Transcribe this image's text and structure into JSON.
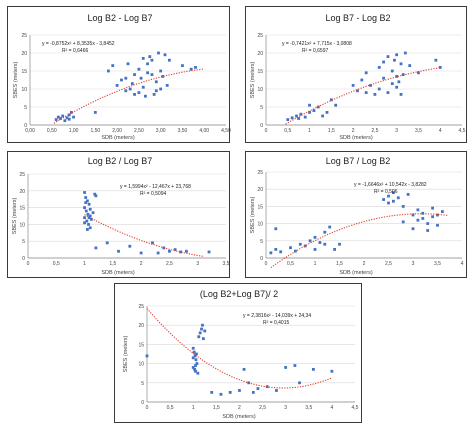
{
  "chart_data": [
    {
      "type": "scatter",
      "title": "Log B2 - Log B7",
      "xlabel": "SDB (meters)",
      "ylabel": "SBES (meters)",
      "xlim": [
        0,
        4.5
      ],
      "ylim": [
        0,
        25
      ],
      "xticks": [
        "0,00",
        "0,50",
        "1,00",
        "1,50",
        "2,00",
        "2,50",
        "3,00",
        "3,50",
        "4,00",
        "4,50"
      ],
      "yticks": [
        "0",
        "5",
        "10",
        "15",
        "20",
        "25"
      ],
      "equation": "y = -0,8752x² + 8,3535x - 3,8452",
      "r2": "R² = 0,6466",
      "trend": {
        "a": -0.8752,
        "b": 8.3535,
        "c": -3.8452,
        "x0": 0.55,
        "x1": 4.0
      },
      "points": [
        [
          0.6,
          1.5
        ],
        [
          0.65,
          2.2
        ],
        [
          0.7,
          1.8
        ],
        [
          0.75,
          2.5
        ],
        [
          0.8,
          1.2
        ],
        [
          0.85,
          2.0
        ],
        [
          0.9,
          2.8
        ],
        [
          0.95,
          3.5
        ],
        [
          1.0,
          2.2
        ],
        [
          0.9,
          1.6
        ],
        [
          1.5,
          3.5
        ],
        [
          1.8,
          15.0
        ],
        [
          1.9,
          16.5
        ],
        [
          2.0,
          11.0
        ],
        [
          2.1,
          12.5
        ],
        [
          2.2,
          13.0
        ],
        [
          2.25,
          17.0
        ],
        [
          2.3,
          10.0
        ],
        [
          2.35,
          11.5
        ],
        [
          2.4,
          8.5
        ],
        [
          2.5,
          9.0
        ],
        [
          2.55,
          13.0
        ],
        [
          2.6,
          10.5
        ],
        [
          2.65,
          8.0
        ],
        [
          2.7,
          14.5
        ],
        [
          2.75,
          19.0
        ],
        [
          2.8,
          18.0
        ],
        [
          2.85,
          8.5
        ],
        [
          2.9,
          12.0
        ],
        [
          2.95,
          20.0
        ],
        [
          3.0,
          15.0
        ],
        [
          3.05,
          13.5
        ],
        [
          3.1,
          19.5
        ],
        [
          3.15,
          11.0
        ],
        [
          2.9,
          9.5
        ],
        [
          2.6,
          18.5
        ],
        [
          2.7,
          17.0
        ],
        [
          3.0,
          10.0
        ],
        [
          2.8,
          14.0
        ],
        [
          3.5,
          16.5
        ],
        [
          3.7,
          15.5
        ],
        [
          3.8,
          16.0
        ],
        [
          2.5,
          15.5
        ],
        [
          2.4,
          14.0
        ],
        [
          2.2,
          9.5
        ],
        [
          3.2,
          18.0
        ]
      ]
    },
    {
      "type": "scatter",
      "title": "Log B7 - Log B2",
      "xlabel": "SDB (meters)",
      "ylabel": "SBES (meters)",
      "xlim": [
        0,
        4.5
      ],
      "ylim": [
        0,
        25
      ],
      "xticks": [
        "0",
        "0,5",
        "1",
        "1,5",
        "2",
        "2,5",
        "3",
        "3,5",
        "4",
        "4,5"
      ],
      "yticks": [
        "0",
        "5",
        "10",
        "15",
        "20",
        "25"
      ],
      "equation": "y = -0,7421x² + 7,715x - 3,0808",
      "r2": "R² = 0,6597",
      "trend": {
        "a": -0.7421,
        "b": 7.715,
        "c": -3.0808,
        "x0": 0.45,
        "x1": 4.0
      },
      "points": [
        [
          0.5,
          1.5
        ],
        [
          0.6,
          2.0
        ],
        [
          0.7,
          2.5
        ],
        [
          0.75,
          1.8
        ],
        [
          0.8,
          3.0
        ],
        [
          0.9,
          2.2
        ],
        [
          1.0,
          3.5
        ],
        [
          1.0,
          5.5
        ],
        [
          1.1,
          4.0
        ],
        [
          1.2,
          5.0
        ],
        [
          1.3,
          2.5
        ],
        [
          1.4,
          3.5
        ],
        [
          1.5,
          7.0
        ],
        [
          1.6,
          5.5
        ],
        [
          2.0,
          11.0
        ],
        [
          2.1,
          9.5
        ],
        [
          2.2,
          12.5
        ],
        [
          2.3,
          14.5
        ],
        [
          2.4,
          11.0
        ],
        [
          2.5,
          8.5
        ],
        [
          2.6,
          10.0
        ],
        [
          2.7,
          13.0
        ],
        [
          2.8,
          9.0
        ],
        [
          2.9,
          15.0
        ],
        [
          2.95,
          18.0
        ],
        [
          3.0,
          19.5
        ],
        [
          3.05,
          12.0
        ],
        [
          3.1,
          17.0
        ],
        [
          3.15,
          14.0
        ],
        [
          3.2,
          20.0
        ],
        [
          3.0,
          10.5
        ],
        [
          2.9,
          11.5
        ],
        [
          2.8,
          19.0
        ],
        [
          3.1,
          8.5
        ],
        [
          2.6,
          16.0
        ],
        [
          3.3,
          16.5
        ],
        [
          3.5,
          14.5
        ],
        [
          4.0,
          16.0
        ],
        [
          3.9,
          18.0
        ],
        [
          2.3,
          9.0
        ],
        [
          2.7,
          17.5
        ],
        [
          3.0,
          13.5
        ]
      ]
    },
    {
      "type": "scatter",
      "title": "Log B2 / Log B7",
      "xlabel": "SDB (meters)",
      "ylabel": "SBES (meters)",
      "xlim": [
        0,
        3.5
      ],
      "ylim": [
        0,
        25
      ],
      "xticks": [
        "0",
        "0,5",
        "1",
        "1,5",
        "2",
        "2,5",
        "3",
        "3,5"
      ],
      "yticks": [
        "0",
        "5",
        "10",
        "15",
        "20",
        "25"
      ],
      "equation": "y = 1,5994x² - 12,467x + 23,768",
      "r2": "R² = 0,5094",
      "trend": {
        "a": 1.5994,
        "b": -12.467,
        "c": 23.768,
        "x0": 1.0,
        "x1": 3.1
      },
      "points": [
        [
          1.0,
          19.5
        ],
        [
          1.02,
          18.0
        ],
        [
          1.05,
          17.0
        ],
        [
          1.08,
          16.0
        ],
        [
          1.0,
          15.0
        ],
        [
          1.03,
          14.0
        ],
        [
          1.06,
          13.0
        ],
        [
          1.1,
          12.5
        ],
        [
          1.0,
          12.0
        ],
        [
          1.04,
          11.0
        ],
        [
          1.07,
          10.0
        ],
        [
          1.1,
          9.0
        ],
        [
          1.12,
          11.5
        ],
        [
          1.15,
          13.5
        ],
        [
          1.18,
          19.0
        ],
        [
          1.2,
          18.5
        ],
        [
          1.05,
          8.5
        ],
        [
          1.0,
          10.5
        ],
        [
          1.1,
          14.5
        ],
        [
          1.2,
          3.0
        ],
        [
          1.4,
          4.5
        ],
        [
          1.6,
          2.0
        ],
        [
          1.8,
          3.5
        ],
        [
          2.0,
          1.5
        ],
        [
          2.2,
          4.5
        ],
        [
          2.4,
          3.0
        ],
        [
          2.5,
          2.0
        ],
        [
          2.6,
          2.5
        ],
        [
          2.7,
          1.8
        ],
        [
          2.8,
          2.0
        ],
        [
          3.2,
          1.8
        ],
        [
          2.3,
          1.5
        ],
        [
          1.02,
          16.5
        ],
        [
          1.08,
          12.0
        ]
      ]
    },
    {
      "type": "scatter",
      "title": "Log B7 / Log B2",
      "xlabel": "SDB (meters)",
      "ylabel": "SBES (meters)",
      "xlim": [
        0,
        4
      ],
      "ylim": [
        0,
        25
      ],
      "xticks": [
        "0",
        "0,5",
        "1",
        "1,5",
        "2",
        "2,5",
        "3",
        "3,5",
        "4"
      ],
      "yticks": [
        "0",
        "5",
        "10",
        "15",
        "20",
        "25"
      ],
      "equation": "y = -1,6646x² + 10,542x - 3,8282",
      "r2": "R² = 0,506",
      "trend": {
        "a": -1.6646,
        "b": 10.542,
        "c": -3.8282,
        "x0": 0.1,
        "x1": 3.7
      },
      "points": [
        [
          0.1,
          1.5
        ],
        [
          0.2,
          2.5
        ],
        [
          0.3,
          1.8
        ],
        [
          0.5,
          3.0
        ],
        [
          0.6,
          2.0
        ],
        [
          0.7,
          4.0
        ],
        [
          0.8,
          3.5
        ],
        [
          0.9,
          5.0
        ],
        [
          1.0,
          2.5
        ],
        [
          1.0,
          6.0
        ],
        [
          1.1,
          4.5
        ],
        [
          1.2,
          7.5
        ],
        [
          1.3,
          9.0
        ],
        [
          1.4,
          2.5
        ],
        [
          1.5,
          4.0
        ],
        [
          2.4,
          17.0
        ],
        [
          2.5,
          18.0
        ],
        [
          2.6,
          16.5
        ],
        [
          2.7,
          17.5
        ],
        [
          2.8,
          15.0
        ],
        [
          2.9,
          18.5
        ],
        [
          2.5,
          16.0
        ],
        [
          2.6,
          19.0
        ],
        [
          3.0,
          12.5
        ],
        [
          3.1,
          11.0
        ],
        [
          3.2,
          13.0
        ],
        [
          3.3,
          10.0
        ],
        [
          3.4,
          12.0
        ],
        [
          3.5,
          9.5
        ],
        [
          3.6,
          13.5
        ],
        [
          3.0,
          8.5
        ],
        [
          3.1,
          14.0
        ],
        [
          3.3,
          8.0
        ],
        [
          2.8,
          10.5
        ],
        [
          3.2,
          11.5
        ],
        [
          3.4,
          14.5
        ],
        [
          3.5,
          12.5
        ],
        [
          0.2,
          8.5
        ],
        [
          1.2,
          4.0
        ]
      ]
    },
    {
      "type": "scatter",
      "title": "(Log B2+Log B7)/ 2",
      "xlabel": "SDB (meters)",
      "ylabel": "SBES (meters)",
      "xlim": [
        0,
        4.5
      ],
      "ylim": [
        0,
        25
      ],
      "xticks": [
        "0",
        "0,5",
        "1",
        "1,5",
        "2",
        "2,5",
        "3",
        "3,5",
        "4",
        "4,5"
      ],
      "yticks": [
        "0",
        "5",
        "10",
        "15",
        "20",
        "25"
      ],
      "equation": "y = 2,3816x² - 14,039x + 24,34",
      "r2": "R² = 0,4015",
      "trend": {
        "a": 2.3816,
        "b": -14.039,
        "c": 24.34,
        "x0": 0.0,
        "x1": 4.0
      },
      "points": [
        [
          0.0,
          12.0
        ],
        [
          1.0,
          14.0
        ],
        [
          1.02,
          13.0
        ],
        [
          1.04,
          12.0
        ],
        [
          1.06,
          11.0
        ],
        [
          1.08,
          10.0
        ],
        [
          1.0,
          9.0
        ],
        [
          1.03,
          8.5
        ],
        [
          1.05,
          8.0
        ],
        [
          1.1,
          7.5
        ],
        [
          1.0,
          11.5
        ],
        [
          1.07,
          12.5
        ],
        [
          1.12,
          17.0
        ],
        [
          1.15,
          18.0
        ],
        [
          1.18,
          19.0
        ],
        [
          1.2,
          20.0
        ],
        [
          1.22,
          16.5
        ],
        [
          1.25,
          18.5
        ],
        [
          1.4,
          2.5
        ],
        [
          1.6,
          2.0
        ],
        [
          1.8,
          2.5
        ],
        [
          2.0,
          3.0
        ],
        [
          2.1,
          8.5
        ],
        [
          2.2,
          5.0
        ],
        [
          2.4,
          3.5
        ],
        [
          2.6,
          4.0
        ],
        [
          2.8,
          3.0
        ],
        [
          3.0,
          9.0
        ],
        [
          3.2,
          9.5
        ],
        [
          3.3,
          5.0
        ],
        [
          3.6,
          8.5
        ],
        [
          4.0,
          8.0
        ],
        [
          2.3,
          2.5
        ],
        [
          1.05,
          9.5
        ]
      ]
    }
  ]
}
